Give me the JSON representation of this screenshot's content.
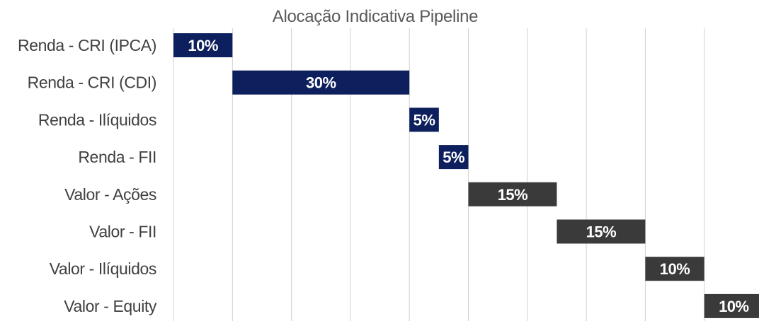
{
  "chart_data": {
    "type": "bar",
    "subtype": "horizontal-waterfall",
    "title": "Alocação Indicativa Pipeline",
    "categories": [
      "Renda - CRI (IPCA)",
      "Renda - CRI (CDI)",
      "Renda - Ilíquidos",
      "Renda - FII",
      "Valor - Ações",
      "Valor - FII",
      "Valor - Ilíquidos",
      "Valor - Equity"
    ],
    "values": [
      10,
      30,
      5,
      5,
      15,
      15,
      10,
      10
    ],
    "data_labels": [
      "10%",
      "30%",
      "5%",
      "5%",
      "15%",
      "15%",
      "10%",
      "10%"
    ],
    "bar_colors": [
      "#0d1f5c",
      "#0d1f5c",
      "#0d1f5c",
      "#0d1f5c",
      "#3a3a3a",
      "#3a3a3a",
      "#3a3a3a",
      "#3a3a3a"
    ],
    "xlim": [
      0,
      100
    ],
    "grid": true,
    "legend": false
  }
}
